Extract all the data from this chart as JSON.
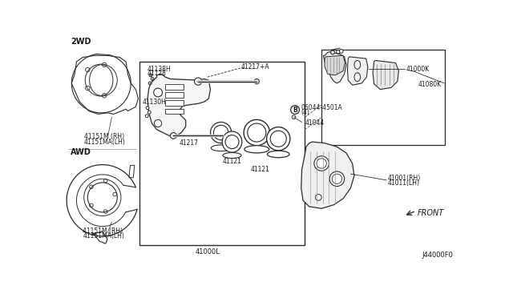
{
  "bg_color": "#ffffff",
  "line_color": "#2a2a2a",
  "text_color": "#1a1a1a",
  "fig_width": 6.4,
  "fig_height": 3.72,
  "diagram_code": "J44000F0",
  "parts": {
    "2wd_label": "2WD",
    "awd_label": "AWD",
    "part_2wd_rh": "41151M (RH)",
    "part_2wd_lh": "41151MA(LH)",
    "part_awd_rh": "41151M (RH)",
    "part_awd_lh": "41151MA(LH)",
    "part_41138H": "41138H",
    "part_41128": "41128",
    "part_41130H": "41130H",
    "part_41217A": "41217+A",
    "part_41217": "41217",
    "part_06044_b": "B",
    "part_06044": "06044-4501A",
    "part_06044_4": "(4)",
    "part_41044": "41044",
    "part_41121_upper": "41121",
    "part_41121_lower": "41121",
    "part_41000L": "41000L",
    "part_41000K": "41000K",
    "part_41080K": "41080K",
    "part_41001_rh": "41001(RH)",
    "part_41011_lh": "41011(LH)",
    "front_label": "FRONT"
  }
}
